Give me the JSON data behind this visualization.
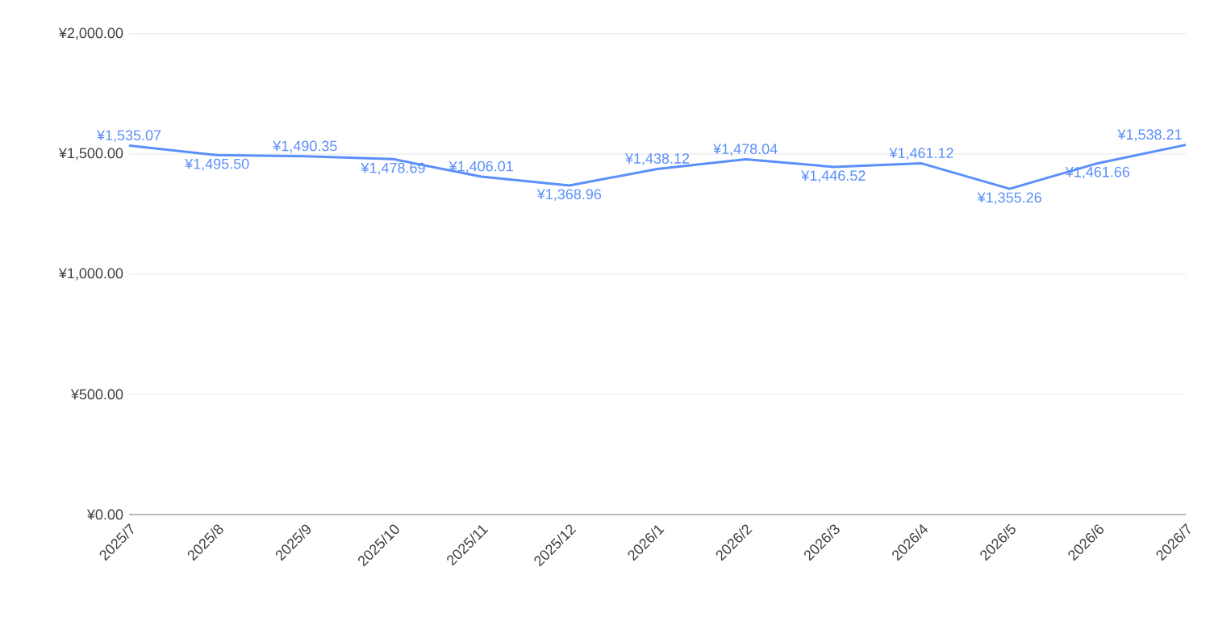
{
  "chart_data": {
    "type": "line",
    "categories": [
      "2025/7",
      "2025/8",
      "2025/9",
      "2025/10",
      "2025/11",
      "2025/12",
      "2026/1",
      "2026/2",
      "2026/3",
      "2026/4",
      "2026/5",
      "2026/6",
      "2026/7"
    ],
    "series": [
      {
        "color": "#5b8ff9",
        "values": [
          1535.07,
          1495.5,
          1490.35,
          1478.69,
          1406.01,
          1368.96,
          1438.12,
          1478.04,
          1446.52,
          1461.12,
          1355.26,
          1461.66,
          1538.21
        ],
        "value_labels": [
          "¥1,535.07",
          "¥1,495.50",
          "¥1,490.35",
          "¥1,478.69",
          "¥1,406.01",
          "¥1,368.96",
          "¥1,438.12",
          "¥1,478.04",
          "¥1,446.52",
          "¥1,461.12",
          "¥1,355.26",
          "¥1,461.66",
          "¥1,538.21"
        ]
      }
    ],
    "ylim": [
      0,
      2000
    ],
    "yticks": [
      {
        "value": 0,
        "label": "¥0.00"
      },
      {
        "value": 500,
        "label": "¥500.00"
      },
      {
        "value": 1000,
        "label": "¥1,000.00"
      },
      {
        "value": 1500,
        "label": "¥1,500.00"
      },
      {
        "value": 2000,
        "label": "¥2,000.00"
      }
    ],
    "grid": "y",
    "marker": "none",
    "line_style": "solid"
  }
}
